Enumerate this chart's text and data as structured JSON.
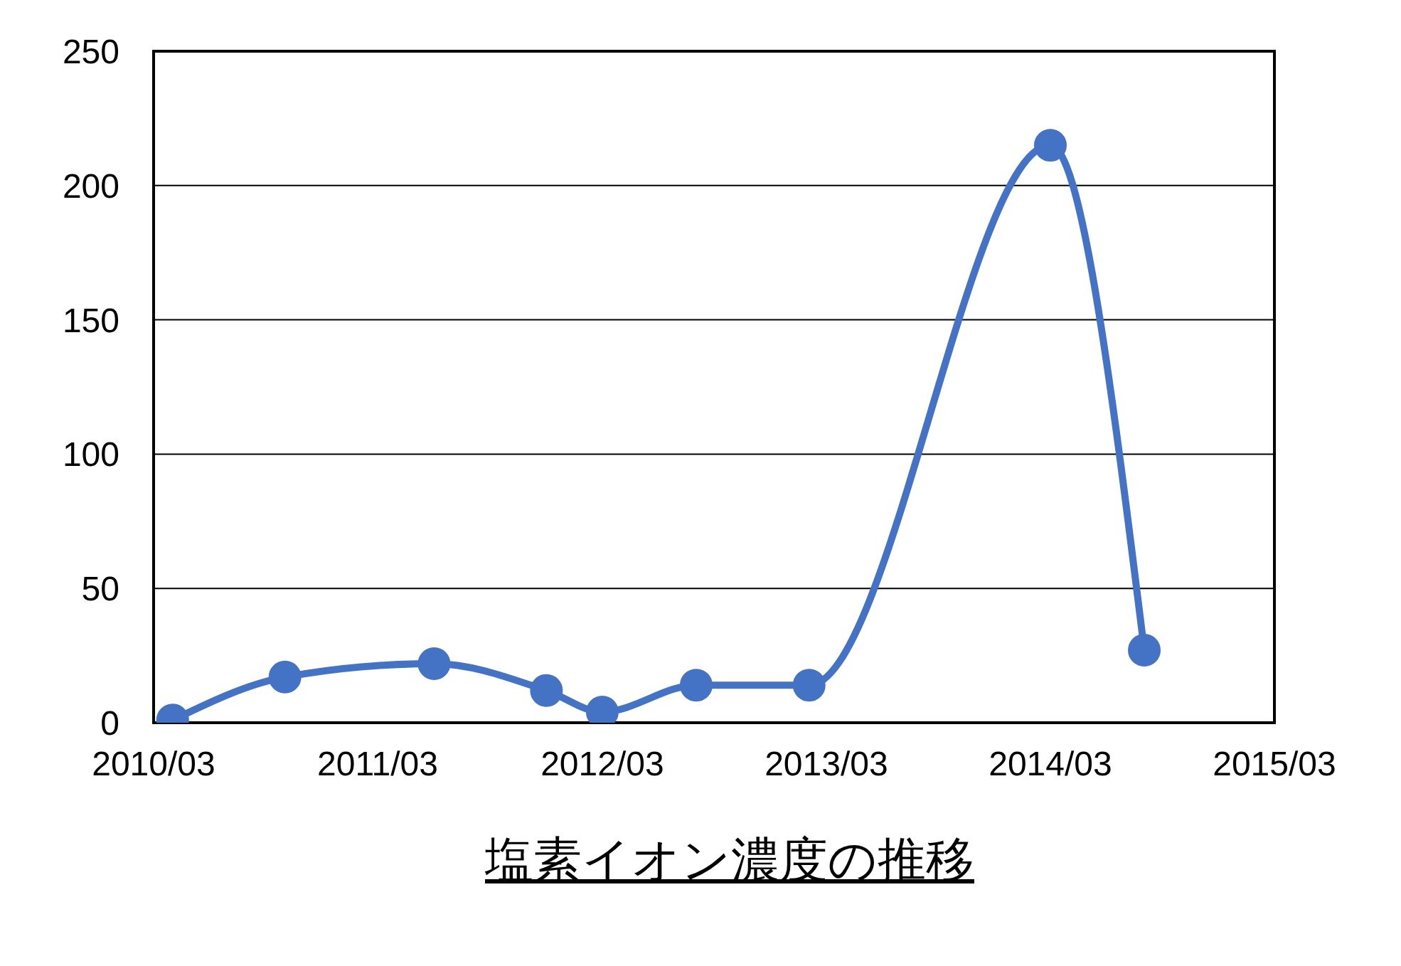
{
  "chart_data": {
    "type": "line",
    "title": "塩素イオン濃度の推移",
    "x": [
      "2010-04",
      "2010-10",
      "2011-06",
      "2011-12",
      "2012-03",
      "2012-08",
      "2013-02",
      "2014-03",
      "2014-08"
    ],
    "series": [
      {
        "color": "#4472c4",
        "values": [
          1,
          17,
          22,
          12,
          4,
          14,
          14,
          215,
          27
        ]
      }
    ],
    "xlim": [
      "2010-03",
      "2015-03"
    ],
    "xticks": [
      {
        "value": "2010-03",
        "label": "2010/03"
      },
      {
        "value": "2011-03",
        "label": "2011/03"
      },
      {
        "value": "2012-03",
        "label": "2012/03"
      },
      {
        "value": "2013-03",
        "label": "2013/03"
      },
      {
        "value": "2014-03",
        "label": "2014/03"
      },
      {
        "value": "2015-03",
        "label": "2015/03"
      }
    ],
    "ylim": [
      0,
      250
    ],
    "yticks": [
      0,
      50,
      100,
      150,
      200,
      250
    ],
    "grid": "y",
    "marker": "circle",
    "line_style": "solid"
  }
}
